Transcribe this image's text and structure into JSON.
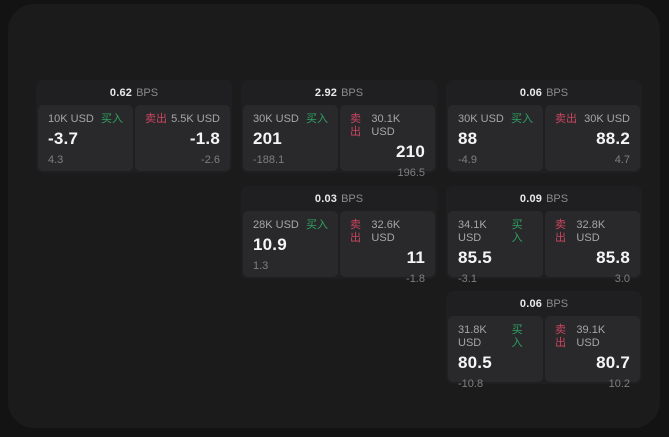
{
  "labels": {
    "buy": "买入",
    "sell": "卖出",
    "bps": "BPS"
  },
  "colors": {
    "page_bg": "#131314",
    "panel_bg": "#1b1b1c",
    "card_bg": "#1f1f21",
    "cell_bg": "#29292b",
    "buy_green": "#2fa263",
    "sell_red": "#cc4560",
    "price_text": "#f5f5f6",
    "muted_text": "#8b8b8e"
  },
  "cards": [
    {
      "bps": "0.62",
      "buy": {
        "size": "10K USD",
        "price": "-3.7",
        "delta": "4.3"
      },
      "sell": {
        "size": "5.5K USD",
        "price": "-1.8",
        "delta": "-2.6"
      }
    },
    {
      "bps": "2.92",
      "buy": {
        "size": "30K USD",
        "price": "201",
        "delta": "-188.1"
      },
      "sell": {
        "size": "30.1K USD",
        "price": "210",
        "delta": "196.5"
      }
    },
    {
      "bps": "0.06",
      "buy": {
        "size": "30K USD",
        "price": "88",
        "delta": "-4.9"
      },
      "sell": {
        "size": "30K USD",
        "price": "88.2",
        "delta": "4.7"
      }
    },
    {
      "bps": "0.03",
      "buy": {
        "size": "28K USD",
        "price": "10.9",
        "delta": "1.3"
      },
      "sell": {
        "size": "32.6K USD",
        "price": "11",
        "delta": "-1.8"
      }
    },
    {
      "bps": "0.09",
      "buy": {
        "size": "34.1K USD",
        "price": "85.5",
        "delta": "-3.1"
      },
      "sell": {
        "size": "32.8K USD",
        "price": "85.8",
        "delta": "3.0"
      }
    },
    {
      "bps": "0.06",
      "buy": {
        "size": "31.8K USD",
        "price": "80.5",
        "delta": "-10.8"
      },
      "sell": {
        "size": "39.1K USD",
        "price": "80.7",
        "delta": "10.2"
      }
    }
  ]
}
